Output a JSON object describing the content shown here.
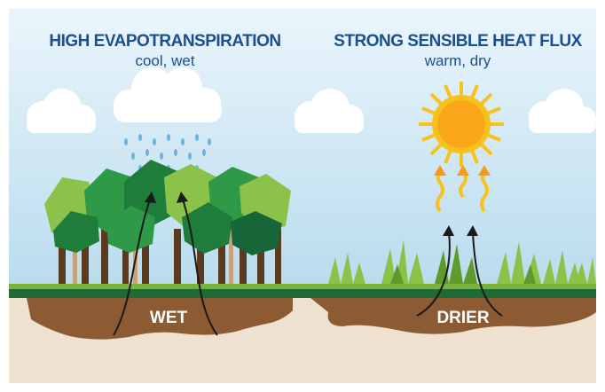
{
  "left": {
    "title": "HIGH EVAPOTRANSPIRATION",
    "subtitle": "cool, wet",
    "soil_label": "WET"
  },
  "right": {
    "title": "STRONG SENSIBLE HEAT FLUX",
    "subtitle": "warm, dry",
    "soil_label": "DRIER"
  }
}
